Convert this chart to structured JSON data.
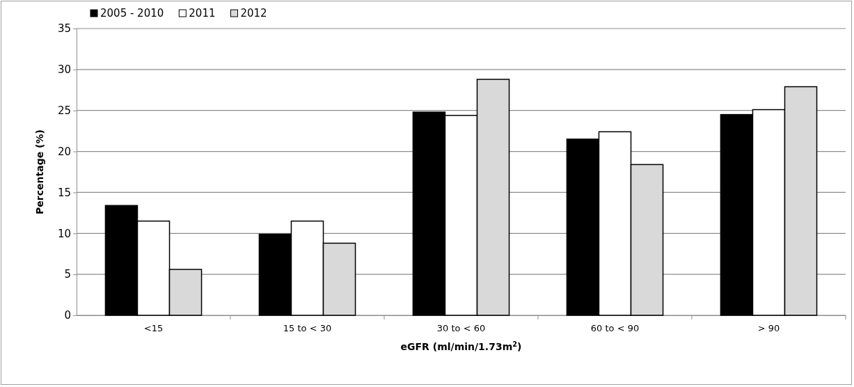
{
  "chart_data": {
    "type": "bar",
    "xlabel": "eGFR (ml/min/1.73m$^{2}$)",
    "ylabel": "Percentage (%)",
    "categories": [
      "<15",
      "15 to < 30",
      "30 to < 60",
      "60 to < 90",
      "> 90"
    ],
    "series": [
      {
        "name": "2005 - 2010",
        "color": "#000000",
        "values": [
          13.4,
          9.9,
          24.8,
          21.5,
          24.5
        ]
      },
      {
        "name": "2011",
        "color": "#ffffff",
        "values": [
          11.5,
          11.5,
          24.4,
          22.4,
          25.1
        ]
      },
      {
        "name": "2012",
        "color": "#d9d9d9",
        "values": [
          5.6,
          8.8,
          28.8,
          18.4,
          27.9
        ]
      }
    ],
    "ylim": [
      0,
      35
    ],
    "yticks": [
      0,
      5,
      10,
      15,
      20,
      25,
      30,
      35
    ],
    "grid": "y",
    "legend": "top left"
  }
}
